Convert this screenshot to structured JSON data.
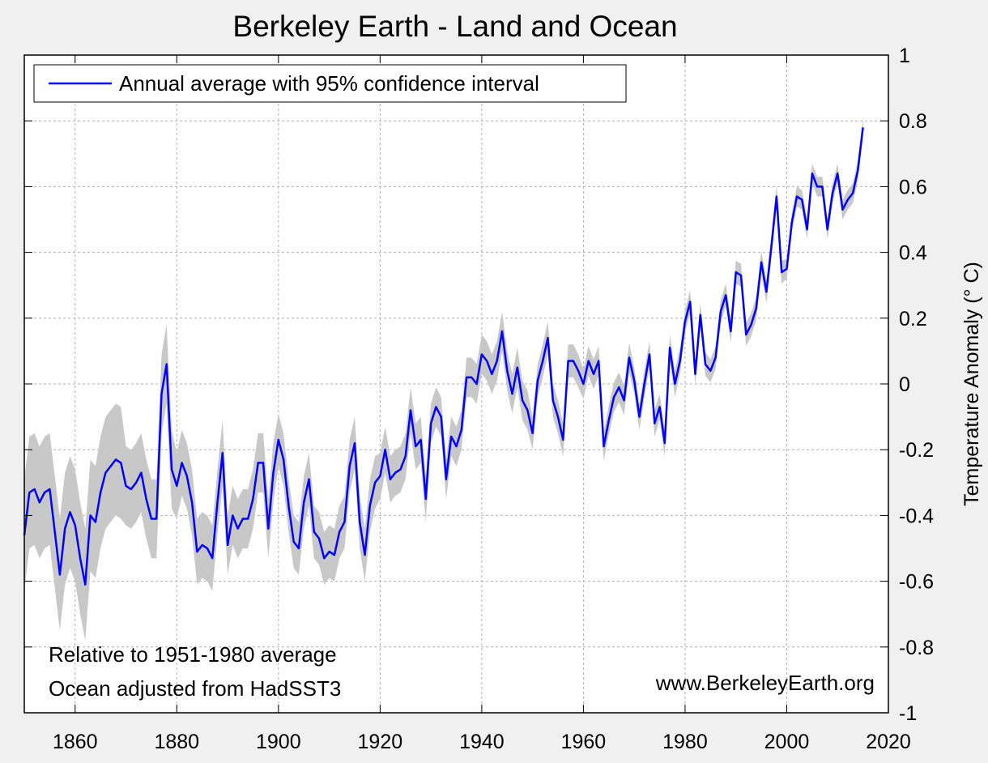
{
  "chart_data": {
    "type": "line",
    "title": "Berkeley Earth - Land and Ocean",
    "xlabel": "",
    "ylabel": "Temperature Anomaly (° C)",
    "xlim": [
      1850,
      2020
    ],
    "ylim": [
      -1,
      1
    ],
    "xticks": [
      1860,
      1880,
      1900,
      1920,
      1940,
      1960,
      1980,
      2000,
      2020
    ],
    "yticks": [
      -1,
      -0.8,
      -0.6,
      -0.4,
      -0.2,
      0,
      0.2,
      0.4,
      0.6,
      0.8,
      1
    ],
    "grid": true,
    "legend_position": "top-left",
    "colors": {
      "line": "#0000ff",
      "band": "#c8c8c8",
      "background": "#f0f0f0",
      "plot": "#ffffff"
    },
    "series": [
      {
        "name": "Annual average with 95% confidence interval",
        "x_start": 1850,
        "x_end": 2015,
        "values": [
          -0.46,
          -0.33,
          -0.32,
          -0.36,
          -0.33,
          -0.32,
          -0.45,
          -0.58,
          -0.44,
          -0.39,
          -0.43,
          -0.53,
          -0.61,
          -0.4,
          -0.42,
          -0.33,
          -0.27,
          -0.25,
          -0.23,
          -0.24,
          -0.31,
          -0.32,
          -0.3,
          -0.27,
          -0.35,
          -0.41,
          -0.41,
          -0.03,
          0.06,
          -0.26,
          -0.31,
          -0.24,
          -0.28,
          -0.36,
          -0.51,
          -0.49,
          -0.5,
          -0.53,
          -0.36,
          -0.21,
          -0.49,
          -0.4,
          -0.44,
          -0.41,
          -0.41,
          -0.35,
          -0.24,
          -0.24,
          -0.44,
          -0.27,
          -0.17,
          -0.23,
          -0.37,
          -0.48,
          -0.5,
          -0.36,
          -0.29,
          -0.45,
          -0.47,
          -0.53,
          -0.51,
          -0.52,
          -0.45,
          -0.42,
          -0.25,
          -0.18,
          -0.42,
          -0.52,
          -0.37,
          -0.3,
          -0.28,
          -0.2,
          -0.29,
          -0.27,
          -0.26,
          -0.22,
          -0.08,
          -0.19,
          -0.17,
          -0.35,
          -0.12,
          -0.07,
          -0.1,
          -0.29,
          -0.16,
          -0.19,
          -0.14,
          0.02,
          0.02,
          0.0,
          0.09,
          0.07,
          0.03,
          0.07,
          0.16,
          0.04,
          -0.03,
          0.05,
          -0.05,
          -0.08,
          -0.15,
          0.01,
          0.07,
          0.14,
          -0.05,
          -0.1,
          -0.17,
          0.07,
          0.07,
          0.04,
          0.0,
          0.07,
          0.03,
          0.07,
          -0.19,
          -0.11,
          -0.04,
          -0.01,
          -0.05,
          0.08,
          0.01,
          -0.1,
          0.0,
          0.09,
          -0.12,
          -0.07,
          -0.18,
          0.11,
          0.0,
          0.07,
          0.19,
          0.25,
          0.03,
          0.21,
          0.06,
          0.04,
          0.08,
          0.22,
          0.27,
          0.16,
          0.34,
          0.33,
          0.15,
          0.18,
          0.23,
          0.37,
          0.28,
          0.42,
          0.57,
          0.34,
          0.35,
          0.49,
          0.57,
          0.56,
          0.47,
          0.64,
          0.6,
          0.6,
          0.47,
          0.58,
          0.64,
          0.53,
          0.56,
          0.58,
          0.65,
          0.78
        ],
        "ci_halfwidth_by_decade": {
          "1850": 0.17,
          "1860": 0.17,
          "1870": 0.12,
          "1880": 0.1,
          "1890": 0.09,
          "1900": 0.08,
          "1910": 0.08,
          "1920": 0.07,
          "1930": 0.06,
          "1940": 0.06,
          "1950": 0.05,
          "1960": 0.045,
          "1970": 0.04,
          "1980": 0.035,
          "1990": 0.035,
          "2000": 0.03,
          "2010": 0.03
        }
      }
    ],
    "annotations": [
      "Relative to 1951-1980 average",
      "Ocean adjusted from HadSST3",
      "www.BerkeleyEarth.org"
    ]
  }
}
